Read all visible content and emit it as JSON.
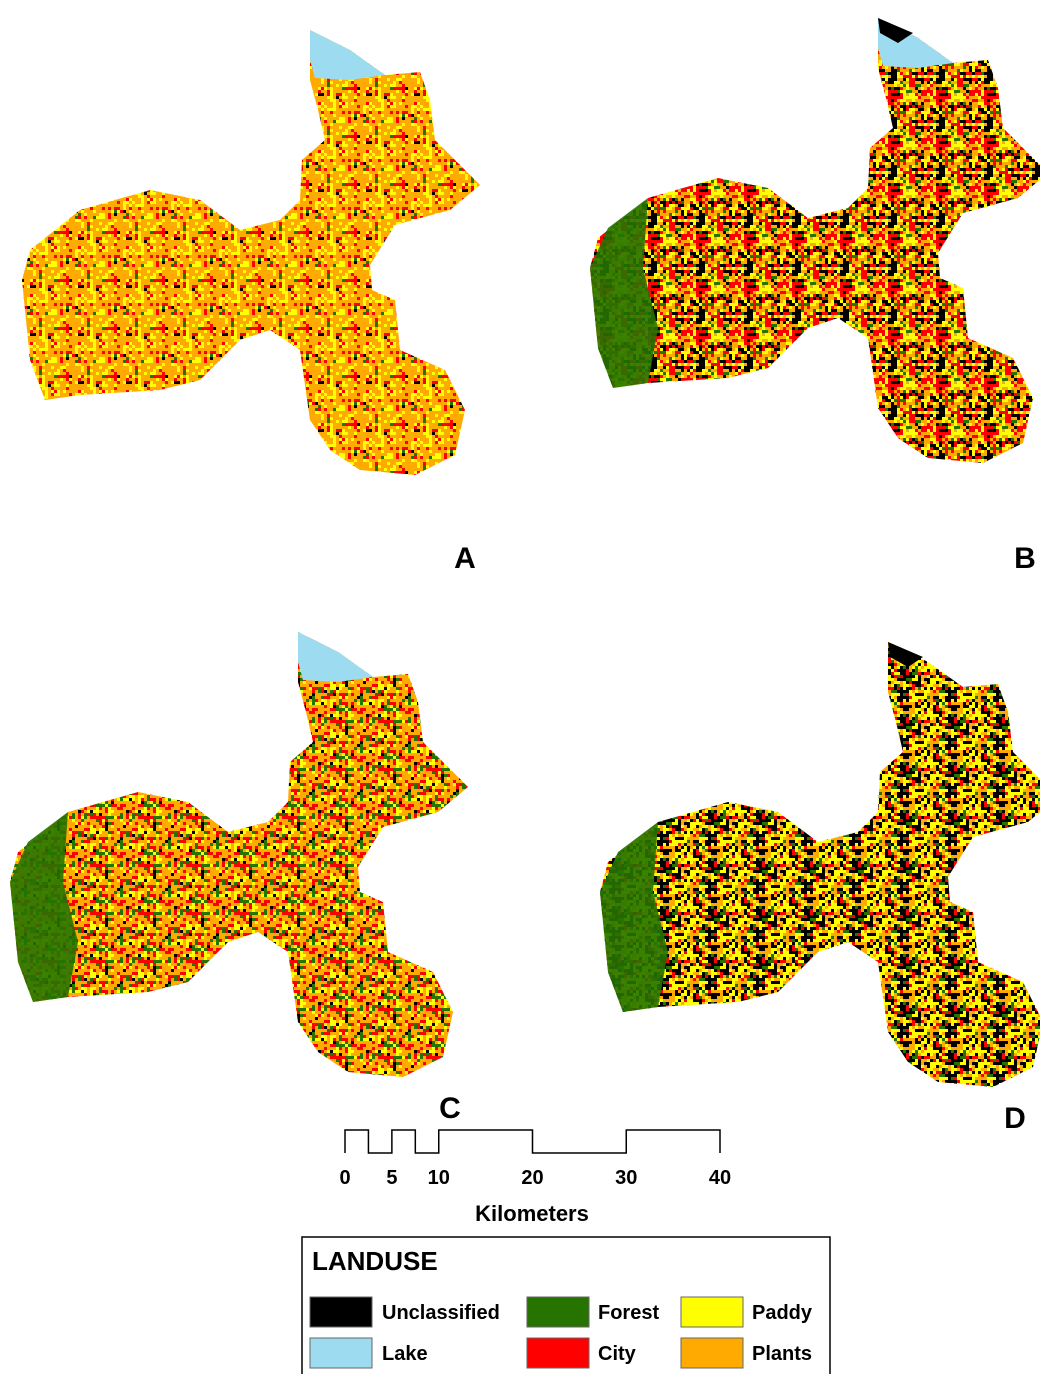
{
  "panels": [
    {
      "label": "A"
    },
    {
      "label": "B"
    },
    {
      "label": "C"
    },
    {
      "label": "D"
    }
  ],
  "scale_bar": {
    "ticks": [
      0,
      5,
      10,
      20,
      30,
      40
    ],
    "unit": "Kilometers"
  },
  "legend": {
    "title": "LANDUSE",
    "items": [
      {
        "name": "Unclassified",
        "color": "#000000"
      },
      {
        "name": "Lake",
        "color": "#9ddcf0"
      },
      {
        "name": "Forest",
        "color": "#267300"
      },
      {
        "name": "City",
        "color": "#ff0000"
      },
      {
        "name": "Paddy",
        "color": "#ffff00"
      },
      {
        "name": "Plants",
        "color": "#ffaa00"
      }
    ]
  }
}
